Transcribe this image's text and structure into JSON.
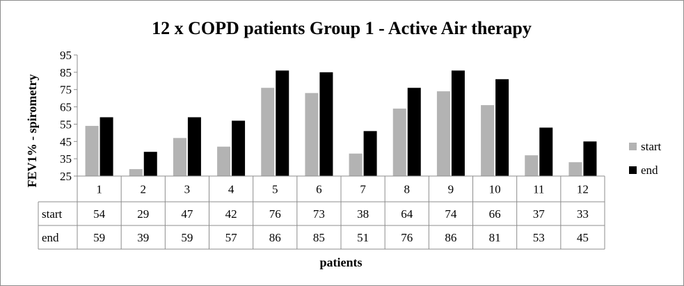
{
  "chart_data": {
    "type": "bar",
    "title": "12 x COPD patients Group 1 - Active Air therapy",
    "xlabel": "patients",
    "ylabel": "FEV1% - spirometry",
    "ylim": [
      25,
      95
    ],
    "yticks": [
      "25",
      "35",
      "45",
      "55",
      "65",
      "75",
      "85",
      "95"
    ],
    "categories": [
      "1",
      "2",
      "3",
      "4",
      "5",
      "6",
      "7",
      "8",
      "9",
      "10",
      "11",
      "12"
    ],
    "series": [
      {
        "name": "start",
        "color": "#b3b3b3",
        "values": [
          54,
          29,
          47,
          42,
          76,
          73,
          38,
          64,
          74,
          66,
          37,
          33
        ]
      },
      {
        "name": "end",
        "color": "#000000",
        "values": [
          59,
          39,
          59,
          57,
          86,
          85,
          51,
          76,
          86,
          81,
          53,
          45
        ]
      }
    ],
    "grid": false,
    "legend": "right",
    "data_table": true
  }
}
